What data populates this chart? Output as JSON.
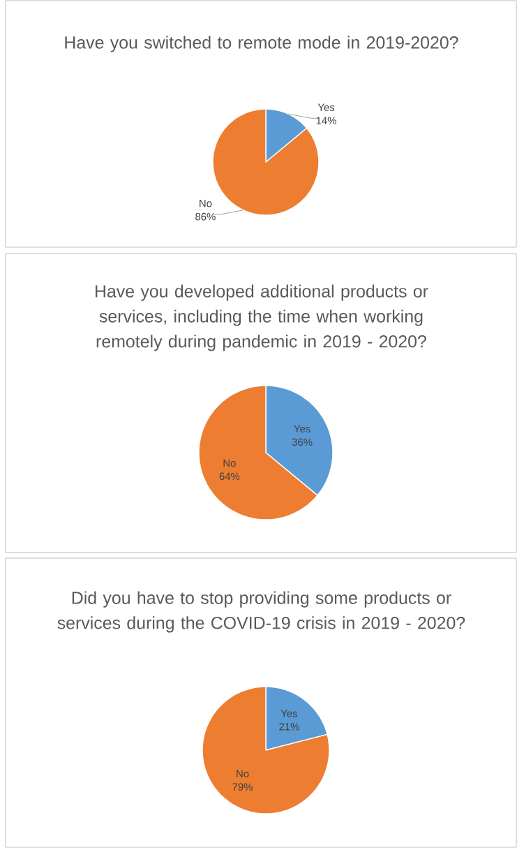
{
  "chart_data": [
    {
      "type": "pie",
      "title": "Have you switched to remote mode in 2019-2020?",
      "categories": [
        "Yes",
        "No"
      ],
      "values": [
        14,
        86
      ],
      "colors": [
        "#5b9bd5",
        "#ed7d31"
      ],
      "value_labels": [
        "14%",
        "86%"
      ]
    },
    {
      "type": "pie",
      "title": "Have you developed additional products or services, including the time when working remotely during pandemic in 2019 - 2020?",
      "categories": [
        "Yes",
        "No"
      ],
      "values": [
        36,
        64
      ],
      "colors": [
        "#5b9bd5",
        "#ed7d31"
      ],
      "value_labels": [
        "36%",
        "64%"
      ]
    },
    {
      "type": "pie",
      "title": "Did you have to stop providing some products or services during the COVID-19 crisis in 2019 - 2020?",
      "categories": [
        "Yes",
        "No"
      ],
      "values": [
        21,
        79
      ],
      "colors": [
        "#5b9bd5",
        "#ed7d31"
      ],
      "value_labels": [
        "21%",
        "79%"
      ]
    }
  ]
}
